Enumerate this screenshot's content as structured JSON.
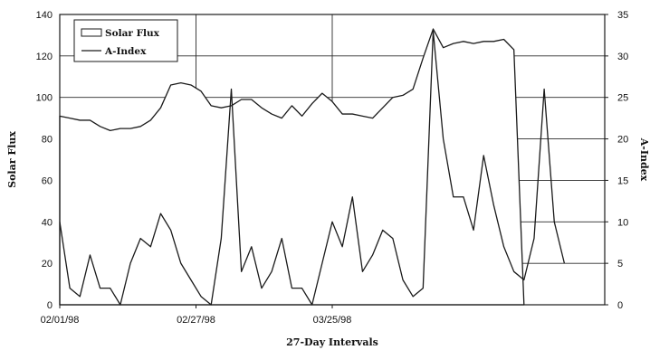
{
  "chart_data": {
    "type": "line",
    "xlabel": "27-Day Intervals",
    "ylabel": "Solar Flux",
    "y2label": "A-Index",
    "x_ticks": [
      "02/01/98",
      "02/27/98",
      "03/25/98"
    ],
    "ylim": [
      0,
      140
    ],
    "y_ticks": [
      0,
      20,
      40,
      60,
      80,
      100,
      120,
      140
    ],
    "y2lim": [
      0,
      35
    ],
    "y2_ticks": [
      0,
      5,
      10,
      15,
      20,
      25,
      30,
      35
    ],
    "grid": true,
    "legend_position": "top-left",
    "series": [
      {
        "name": "Solar Flux",
        "axis": "left",
        "style": "area-outline",
        "values": [
          91,
          90,
          89,
          89,
          86,
          84,
          85,
          85,
          86,
          89,
          95,
          106,
          107,
          106,
          103,
          96,
          95,
          96,
          99,
          99,
          95,
          92,
          90,
          96,
          91,
          97,
          102,
          98,
          92,
          92,
          91,
          90,
          95,
          100,
          101,
          104,
          119,
          133,
          124,
          126,
          127,
          126,
          127,
          127,
          128,
          123,
          0
        ]
      },
      {
        "name": "A-Index",
        "axis": "right",
        "style": "line",
        "values": [
          10,
          2,
          1,
          6,
          2,
          2,
          0,
          5,
          8,
          7,
          11,
          9,
          5,
          3,
          1,
          0,
          8,
          26,
          4,
          7,
          2,
          4,
          8,
          2,
          2,
          0,
          5,
          10,
          7,
          13,
          4,
          6,
          9,
          8,
          3,
          1,
          2,
          33,
          20,
          13,
          13,
          9,
          18,
          12,
          7,
          4,
          3,
          8,
          26,
          10,
          5
        ]
      }
    ]
  }
}
